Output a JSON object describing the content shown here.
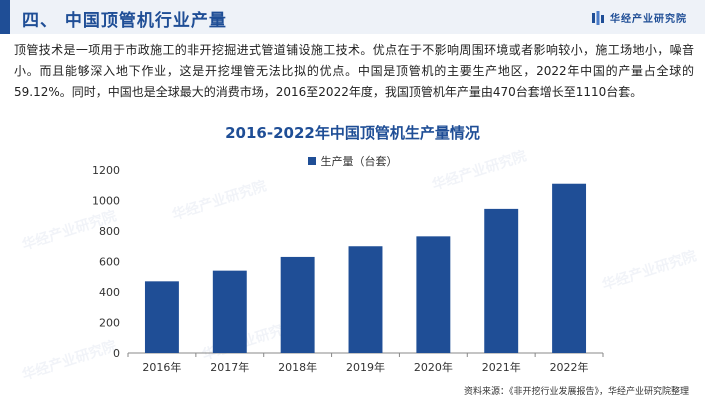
{
  "header": {
    "title": "四、 中国顶管机行业产量",
    "brand": "华经产业研究院"
  },
  "paragraph": "顶管技术是一项用于市政施工的非开挖掘进式管道铺设施工技术。优点在于不影响周围环境或者影响较小，施工场地小，噪音小。而且能够深入地下作业，这是开挖埋管无法比拟的优点。中国是顶管机的主要生产地区，2022年中国的产量占全球的59.12%。同时，中国也是全球最大的消费市场，2016至2022年度，我国顶管机年产量由470台套增长至1110台套。",
  "watermark": "华经产业研究院",
  "source": "资料来源：《非开挖行业发展报告》，华经产业研究院整理",
  "colors": {
    "accent": "#1f4e96",
    "bar": "#1f4e96",
    "header_bg": "#eef2f8"
  },
  "chart_data": {
    "type": "bar",
    "title": "2016-2022年中国顶管机生产量情况",
    "categories": [
      "2016年",
      "2017年",
      "2018年",
      "2019年",
      "2020年",
      "2021年",
      "2022年"
    ],
    "series": [
      {
        "name": "生产量（台套）",
        "values": [
          470,
          540,
          630,
          700,
          765,
          945,
          1110
        ]
      }
    ],
    "ylim": [
      0,
      1200
    ],
    "yticks": [
      0,
      200,
      400,
      600,
      800,
      1000,
      1200
    ],
    "grid": false,
    "legend": "top-center"
  }
}
